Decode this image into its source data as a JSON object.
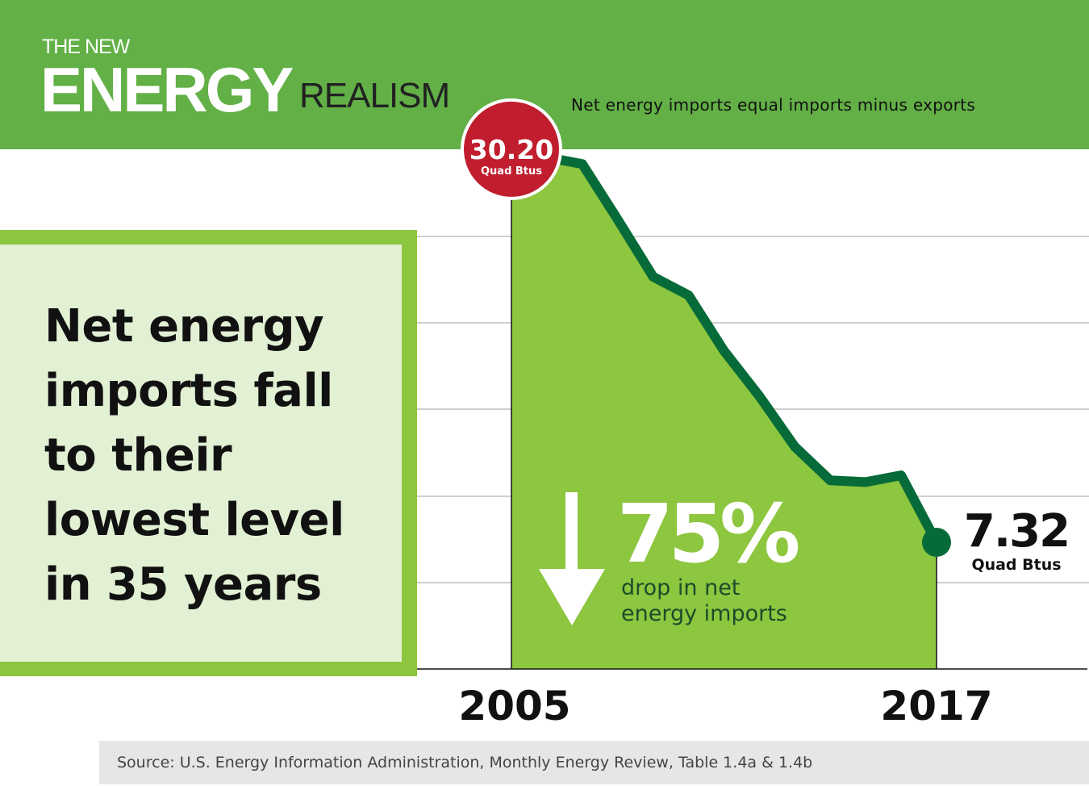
{
  "header": {
    "brand_top": "THE NEW",
    "brand_main": "ENERGY",
    "brand_sub": "REALISM",
    "subtitle": "Net energy imports equal imports minus exports"
  },
  "headline": "Net energy imports fall to their lowest level in 35 years",
  "source": "Source: U.S. Energy Information Administration, Monthly Energy Review, Table 1.4a & 1.4b",
  "colors": {
    "header": "#62b046",
    "area": "#8dc63f",
    "line": "#066b38",
    "start_marker": "#c01e2e",
    "end_marker": "#066b38",
    "box_fill": "#e2f0d3"
  },
  "chart_data": {
    "type": "area",
    "title": "",
    "xlabel": "",
    "ylabel": "",
    "x_tick_labels": [
      "2005",
      "2017"
    ],
    "x": [
      2005,
      2006,
      2007,
      2008,
      2009,
      2010,
      2011,
      2012,
      2013,
      2014,
      2015,
      2016,
      2017
    ],
    "series": [
      {
        "values": [
          30.2,
          30.2,
          29.8,
          26.5,
          23.1,
          22.0,
          18.7,
          16.0,
          13.0,
          11.0,
          10.9,
          11.3,
          7.32
        ]
      }
    ],
    "grid": true,
    "start_label": {
      "value": "30.20",
      "unit": "Quad Btus"
    },
    "end_label": {
      "value": "7.32",
      "unit": "Quad Btus"
    },
    "annotation": {
      "arrow": "down-arrow-icon",
      "value": "75%",
      "text_line1": "drop in net",
      "text_line2": "energy imports"
    }
  }
}
